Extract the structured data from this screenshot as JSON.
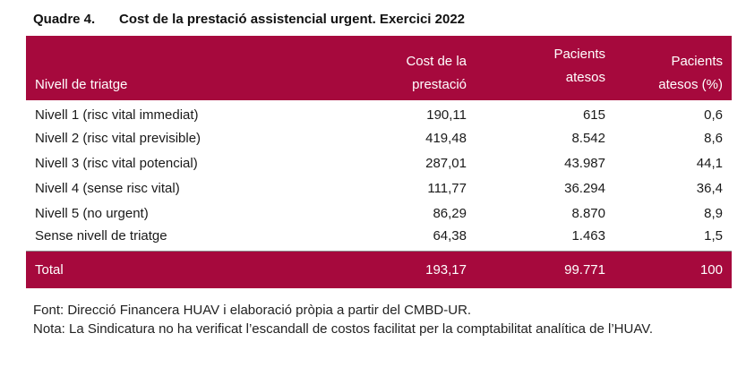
{
  "title": {
    "number": "Quadre 4.",
    "text": "Cost de la prestació assistencial urgent. Exercici 2022"
  },
  "table": {
    "headers": {
      "level": "Nivell de triatge",
      "cost": [
        "Cost de la",
        "prestació"
      ],
      "patients": [
        "Pacients",
        "atesos"
      ],
      "percent": [
        "Pacients",
        "atesos (%)"
      ]
    },
    "rows": [
      {
        "level": "Nivell 1 (risc vital immediat)",
        "cost": "190,11",
        "patients": "615",
        "percent": "0,6"
      },
      {
        "level": "Nivell 2 (risc vital previsible)",
        "cost": "419,48",
        "patients": "8.542",
        "percent": "8,6"
      },
      {
        "level": "Nivell 3 (risc vital potencial)",
        "cost": "287,01",
        "patients": "43.987",
        "percent": "44,1"
      },
      {
        "level": "Nivell 4 (sense risc vital)",
        "cost": "111,77",
        "patients": "36.294",
        "percent": "36,4"
      },
      {
        "level": "Nivell 5 (no urgent)",
        "cost": "86,29",
        "patients": "8.870",
        "percent": "8,9"
      },
      {
        "level": "Sense nivell de triatge",
        "cost": "64,38",
        "patients": "1.463",
        "percent": "1,5"
      }
    ],
    "total": {
      "label": "Total",
      "cost": "193,17",
      "patients": "99.771",
      "percent": "100"
    }
  },
  "notes": {
    "source": "Font: Direcció Financera HUAV i elaboració pròpia a partir del CMBD-UR.",
    "note": "Nota: La Sindicatura no ha verificat l’escandall de costos facilitat per la comptabilitat analítica de l’HUAV."
  },
  "colors": {
    "header_bg": "#a6093d",
    "header_text": "#ffffff"
  }
}
